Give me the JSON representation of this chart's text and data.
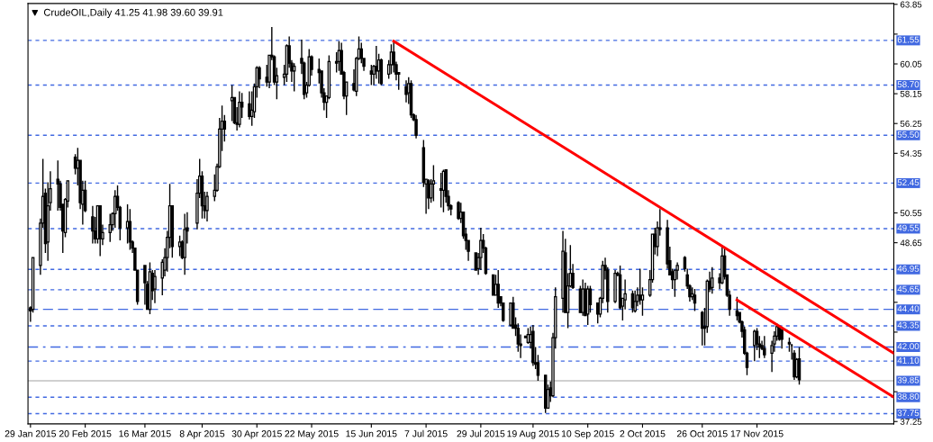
{
  "chart_data": {
    "type": "candlestick",
    "title": "CrudeOIL,Daily 41.25 41.98 39.60 39.91",
    "x": [
      "2015-01-29",
      "2015-01-30",
      "2015-02-02",
      "2015-02-03",
      "2015-02-04",
      "2015-02-05",
      "2015-02-06",
      "2015-02-09",
      "2015-02-10",
      "2015-02-11",
      "2015-02-12",
      "2015-02-13",
      "2015-02-16",
      "2015-02-17",
      "2015-02-18",
      "2015-02-19",
      "2015-02-20",
      "2015-02-23",
      "2015-02-24",
      "2015-02-25",
      "2015-02-26",
      "2015-02-27",
      "2015-03-02",
      "2015-03-03",
      "2015-03-04",
      "2015-03-05",
      "2015-03-06",
      "2015-03-09",
      "2015-03-10",
      "2015-03-11",
      "2015-03-12",
      "2015-03-13",
      "2015-03-16",
      "2015-03-17",
      "2015-03-18",
      "2015-03-19",
      "2015-03-20",
      "2015-03-23",
      "2015-03-24",
      "2015-03-25",
      "2015-03-26",
      "2015-03-27",
      "2015-03-30",
      "2015-03-31",
      "2015-04-01",
      "2015-04-02",
      "2015-04-06",
      "2015-04-07",
      "2015-04-08",
      "2015-04-09",
      "2015-04-10",
      "2015-04-13",
      "2015-04-14",
      "2015-04-15",
      "2015-04-16",
      "2015-04-17",
      "2015-04-20",
      "2015-04-21",
      "2015-04-22",
      "2015-04-23",
      "2015-04-24",
      "2015-04-27",
      "2015-04-28",
      "2015-04-29",
      "2015-04-30",
      "2015-05-01",
      "2015-05-04",
      "2015-05-05",
      "2015-05-06",
      "2015-05-07",
      "2015-05-08",
      "2015-05-11",
      "2015-05-12",
      "2015-05-13",
      "2015-05-14",
      "2015-05-15",
      "2015-05-18",
      "2015-05-19",
      "2015-05-20",
      "2015-05-21",
      "2015-05-22",
      "2015-05-25",
      "2015-05-26",
      "2015-05-27",
      "2015-05-28",
      "2015-05-29",
      "2015-06-01",
      "2015-06-02",
      "2015-06-03",
      "2015-06-04",
      "2015-06-05",
      "2015-06-08",
      "2015-06-09",
      "2015-06-10",
      "2015-06-11",
      "2015-06-12",
      "2015-06-15",
      "2015-06-16",
      "2015-06-17",
      "2015-06-18",
      "2015-06-19",
      "2015-06-22",
      "2015-06-23",
      "2015-06-24",
      "2015-06-25",
      "2015-06-26",
      "2015-06-29",
      "2015-06-30",
      "2015-07-01",
      "2015-07-02",
      "2015-07-03",
      "2015-07-06",
      "2015-07-07",
      "2015-07-08",
      "2015-07-09",
      "2015-07-10",
      "2015-07-13",
      "2015-07-14",
      "2015-07-15",
      "2015-07-16",
      "2015-07-17",
      "2015-07-20",
      "2015-07-21",
      "2015-07-22",
      "2015-07-23",
      "2015-07-24",
      "2015-07-27",
      "2015-07-28",
      "2015-07-29",
      "2015-07-30",
      "2015-07-31",
      "2015-08-03",
      "2015-08-04",
      "2015-08-05",
      "2015-08-06",
      "2015-08-07",
      "2015-08-10",
      "2015-08-11",
      "2015-08-12",
      "2015-08-13",
      "2015-08-14",
      "2015-08-16",
      "2015-08-17",
      "2015-08-18",
      "2015-08-19",
      "2015-08-20",
      "2015-08-21",
      "2015-08-24",
      "2015-08-25",
      "2015-08-26",
      "2015-08-27",
      "2015-08-28",
      "2015-08-31",
      "2015-09-01",
      "2015-09-02",
      "2015-09-03",
      "2015-09-04",
      "2015-09-07",
      "2015-09-08",
      "2015-09-09",
      "2015-09-10",
      "2015-09-11",
      "2015-09-14",
      "2015-09-15",
      "2015-09-16",
      "2015-09-17",
      "2015-09-18",
      "2015-09-21",
      "2015-09-22",
      "2015-09-23",
      "2015-09-24",
      "2015-09-25",
      "2015-09-28",
      "2015-09-29",
      "2015-09-30",
      "2015-10-01",
      "2015-10-02",
      "2015-10-05",
      "2015-10-06",
      "2015-10-07",
      "2015-10-08",
      "2015-10-09",
      "2015-10-12",
      "2015-10-13",
      "2015-10-14",
      "2015-10-15",
      "2015-10-16",
      "2015-10-19",
      "2015-10-20",
      "2015-10-21",
      "2015-10-22",
      "2015-10-23",
      "2015-10-26",
      "2015-10-27",
      "2015-10-28",
      "2015-10-29",
      "2015-10-30",
      "2015-11-02",
      "2015-11-03",
      "2015-11-04",
      "2015-11-05",
      "2015-11-06",
      "2015-11-09",
      "2015-11-10",
      "2015-11-11",
      "2015-11-12",
      "2015-11-13",
      "2015-11-16",
      "2015-11-17",
      "2015-11-18",
      "2015-11-19",
      "2015-11-20",
      "2015-11-23",
      "2015-11-24",
      "2015-11-25",
      "2015-11-26",
      "2015-11-27",
      "2015-11-30",
      "2015-12-01",
      "2015-12-02",
      "2015-12-03",
      "2015-12-04"
    ],
    "ohlc": [
      [
        44.5,
        44.6,
        43.6,
        44.3
      ],
      [
        44.4,
        47.7,
        44.2,
        47.7
      ],
      [
        47.2,
        50.2,
        46.6,
        49.9
      ],
      [
        49.9,
        54.0,
        49.6,
        51.6
      ],
      [
        51.8,
        52.1,
        48.0,
        48.6
      ],
      [
        48.7,
        52.5,
        47.5,
        51.0
      ],
      [
        51.2,
        53.2,
        50.7,
        52.1
      ],
      [
        52.7,
        53.9,
        50.7,
        52.4
      ],
      [
        52.4,
        52.6,
        50.7,
        50.9
      ],
      [
        51.1,
        51.1,
        48.0,
        49.4
      ],
      [
        49.3,
        51.5,
        49.0,
        51.4
      ],
      [
        51.3,
        52.6,
        50.9,
        52.6
      ],
      [
        54.1,
        54.3,
        53.0,
        53.4
      ],
      [
        53.4,
        54.7,
        52.3,
        53.9
      ],
      [
        53.9,
        53.9,
        50.8,
        51.2
      ],
      [
        51.1,
        52.6,
        49.8,
        52.0
      ],
      [
        52.0,
        52.6,
        50.6,
        50.7
      ],
      [
        50.3,
        51.0,
        48.6,
        49.4
      ],
      [
        49.4,
        50.3,
        48.6,
        48.9
      ],
      [
        48.9,
        51.0,
        48.6,
        51.0
      ],
      [
        51.0,
        51.0,
        47.8,
        48.9
      ],
      [
        48.9,
        49.8,
        48.5,
        49.3
      ],
      [
        49.3,
        50.5,
        48.7,
        49.8
      ],
      [
        49.8,
        50.6,
        49.4,
        50.5
      ],
      [
        50.5,
        52.0,
        49.6,
        51.6
      ],
      [
        51.6,
        52.3,
        50.7,
        50.9
      ],
      [
        50.9,
        51.0,
        48.8,
        49.6
      ],
      [
        49.6,
        51.1,
        48.6,
        50.0
      ],
      [
        50.0,
        50.8,
        48.2,
        48.7
      ],
      [
        48.7,
        48.8,
        48.0,
        48.3
      ],
      [
        48.3,
        48.3,
        46.9,
        46.9
      ],
      [
        46.9,
        46.9,
        44.7,
        44.9
      ],
      [
        47.2,
        47.2,
        44.7,
        46.1
      ],
      [
        46.0,
        46.2,
        44.4,
        44.4
      ],
      [
        44.4,
        47.4,
        44.1,
        46.8
      ],
      [
        46.7,
        46.9,
        45.0,
        45.6
      ],
      [
        45.7,
        46.9,
        44.8,
        46.5
      ],
      [
        46.4,
        47.6,
        45.3,
        47.4
      ],
      [
        46.9,
        48.3,
        46.5,
        47.7
      ],
      [
        47.7,
        49.4,
        46.8,
        49.0
      ],
      [
        49.0,
        52.4,
        48.3,
        51.0
      ],
      [
        51.0,
        51.0,
        47.7,
        48.4
      ],
      [
        48.4,
        49.1,
        47.8,
        48.7
      ],
      [
        48.7,
        48.8,
        47.6,
        47.7
      ],
      [
        47.7,
        50.5,
        46.6,
        49.5
      ],
      [
        49.6,
        50.6,
        48.6,
        49.4
      ],
      [
        49.9,
        52.7,
        49.5,
        51.8
      ],
      [
        51.8,
        54.0,
        51.5,
        52.9
      ],
      [
        52.9,
        53.2,
        50.2,
        51.0
      ],
      [
        51.0,
        51.9,
        50.2,
        50.7
      ],
      [
        50.7,
        51.9,
        50.0,
        51.6
      ],
      [
        51.6,
        53.0,
        51.3,
        52.0
      ],
      [
        52.0,
        53.7,
        51.9,
        53.5
      ],
      [
        53.5,
        56.6,
        53.4,
        55.9
      ],
      [
        55.9,
        57.4,
        54.5,
        56.4
      ],
      [
        56.4,
        56.8,
        55.1,
        55.9
      ],
      [
        57.7,
        58.7,
        56.4,
        57.9
      ],
      [
        57.9,
        57.9,
        56.2,
        56.3
      ],
      [
        56.3,
        57.3,
        55.8,
        56.2
      ],
      [
        56.2,
        58.3,
        56.0,
        57.6
      ],
      [
        57.6,
        58.2,
        56.6,
        57.3
      ],
      [
        57.5,
        58.3,
        56.5,
        56.7
      ],
      [
        56.7,
        58.3,
        56.1,
        57.1
      ],
      [
        57.0,
        58.8,
        56.6,
        58.6
      ],
      [
        58.6,
        59.9,
        57.9,
        59.8
      ],
      [
        59.8,
        59.9,
        58.5,
        59.1
      ],
      [
        59.2,
        60.0,
        58.6,
        58.9
      ],
      [
        58.9,
        60.6,
        58.5,
        60.6
      ],
      [
        60.6,
        62.4,
        60.3,
        60.5
      ],
      [
        60.5,
        60.6,
        58.7,
        58.9
      ],
      [
        58.9,
        59.8,
        57.8,
        59.3
      ],
      [
        59.2,
        60.0,
        58.7,
        59.4
      ],
      [
        59.4,
        61.3,
        58.9,
        61.2
      ],
      [
        61.2,
        61.8,
        59.8,
        60.1
      ],
      [
        60.1,
        60.3,
        58.9,
        59.6
      ],
      [
        59.6,
        60.1,
        58.3,
        59.9
      ],
      [
        60.4,
        61.6,
        59.4,
        60.1
      ],
      [
        60.1,
        60.2,
        57.8,
        58.1
      ],
      [
        58.2,
        58.9,
        57.9,
        58.7
      ],
      [
        58.7,
        61.0,
        58.6,
        60.5
      ],
      [
        60.5,
        60.6,
        59.3,
        59.7
      ],
      [
        59.7,
        60.4,
        58.8,
        59.5
      ],
      [
        59.6,
        59.6,
        57.9,
        58.2
      ],
      [
        58.2,
        58.5,
        57.1,
        57.6
      ],
      [
        57.6,
        58.0,
        56.6,
        58.0
      ],
      [
        57.9,
        60.6,
        57.8,
        60.2
      ],
      [
        60.2,
        60.8,
        59.5,
        60.1
      ],
      [
        60.2,
        61.5,
        59.6,
        60.9
      ],
      [
        60.9,
        61.4,
        59.4,
        59.4
      ],
      [
        59.5,
        59.6,
        57.8,
        58.0
      ],
      [
        58.0,
        58.9,
        56.8,
        58.9
      ],
      [
        58.8,
        59.7,
        58.3,
        58.4
      ],
      [
        58.3,
        60.5,
        58.0,
        60.4
      ],
      [
        60.4,
        61.8,
        60.3,
        61.0
      ],
      [
        61.0,
        61.4,
        60.1,
        60.4
      ],
      [
        60.4,
        60.4,
        59.6,
        59.9
      ],
      [
        59.6,
        60.0,
        58.7,
        59.4
      ],
      [
        59.4,
        60.0,
        58.7,
        59.9
      ],
      [
        59.9,
        61.2,
        59.1,
        59.6
      ],
      [
        59.6,
        60.7,
        58.8,
        60.3
      ],
      [
        60.3,
        60.4,
        58.7,
        58.8
      ],
      [
        59.4,
        60.3,
        59.1,
        60.0
      ],
      [
        60.0,
        61.3,
        59.4,
        60.8
      ],
      [
        60.8,
        61.5,
        59.5,
        60.0
      ],
      [
        60.0,
        60.2,
        59.0,
        59.4
      ],
      [
        59.5,
        59.5,
        58.4,
        59.4
      ],
      [
        58.6,
        59.0,
        57.6,
        58.1
      ],
      [
        58.2,
        59.2,
        57.5,
        58.8
      ],
      [
        58.8,
        59.0,
        56.6,
        56.8
      ],
      [
        56.8,
        56.9,
        56.4,
        56.5
      ],
      [
        56.5,
        56.8,
        55.3,
        55.5
      ],
      [
        54.7,
        55.2,
        52.2,
        52.5
      ],
      [
        52.4,
        52.7,
        50.5,
        52.7
      ],
      [
        52.6,
        52.7,
        50.8,
        51.5
      ],
      [
        51.5,
        52.7,
        51.2,
        52.4
      ],
      [
        52.4,
        53.6,
        51.3,
        52.6
      ],
      [
        52.1,
        53.1,
        50.9,
        52.0
      ],
      [
        52.0,
        53.3,
        50.6,
        53.2
      ],
      [
        53.3,
        53.3,
        51.2,
        51.6
      ],
      [
        51.6,
        52.0,
        50.7,
        51.0
      ],
      [
        51.0,
        51.1,
        50.4,
        50.8
      ],
      [
        51.2,
        51.3,
        50.1,
        50.2
      ],
      [
        50.2,
        51.2,
        49.9,
        50.6
      ],
      [
        50.6,
        50.6,
        48.9,
        49.1
      ],
      [
        49.2,
        49.6,
        48.2,
        48.8
      ],
      [
        48.8,
        48.8,
        47.5,
        48.1
      ],
      [
        48.0,
        48.0,
        46.9,
        46.9
      ],
      [
        47.0,
        48.0,
        46.6,
        47.7
      ],
      [
        47.7,
        49.6,
        46.9,
        48.8
      ],
      [
        48.8,
        49.2,
        48.0,
        48.3
      ],
      [
        48.3,
        48.4,
        46.6,
        46.7
      ],
      [
        46.6,
        46.6,
        45.3,
        45.3
      ],
      [
        45.3,
        46.6,
        45.3,
        46.0
      ],
      [
        46.0,
        46.9,
        44.5,
        44.8
      ],
      [
        45.2,
        45.2,
        44.6,
        44.8
      ],
      [
        44.8,
        44.8,
        43.6,
        43.7
      ],
      [
        43.4,
        44.8,
        43.3,
        44.8
      ],
      [
        44.8,
        45.2,
        43.2,
        43.2
      ],
      [
        43.4,
        43.9,
        42.7,
        43.2
      ],
      [
        43.2,
        43.5,
        41.7,
        42.2
      ],
      [
        42.2,
        42.8,
        41.3,
        42.1
      ],
      [
        42.7,
        42.7,
        42.6,
        42.6
      ],
      [
        42.3,
        43.2,
        42.2,
        42.8
      ],
      [
        42.3,
        43.3,
        41.9,
        42.8
      ],
      [
        43.0,
        43.4,
        40.8,
        41.0
      ],
      [
        41.0,
        42.0,
        40.6,
        40.9
      ],
      [
        41.0,
        41.5,
        39.85,
        40.2
      ],
      [
        40.2,
        40.2,
        37.8,
        38.1
      ],
      [
        38.1,
        39.6,
        38.1,
        39.3
      ],
      [
        39.4,
        39.8,
        38.5,
        38.9
      ],
      [
        38.9,
        42.9,
        38.8,
        42.6
      ],
      [
        42.6,
        45.8,
        41.9,
        45.2
      ],
      [
        45.1,
        49.4,
        44.2,
        48.1
      ],
      [
        48.0,
        48.9,
        44.2,
        44.2
      ],
      [
        44.2,
        46.7,
        43.2,
        45.9
      ],
      [
        45.9,
        48.5,
        45.8,
        46.7
      ],
      [
        46.7,
        47.3,
        45.7,
        45.8
      ],
      [
        45.7,
        45.9,
        44.2,
        44.2
      ],
      [
        44.2,
        46.3,
        44.0,
        45.7
      ],
      [
        45.7,
        46.1,
        44.0,
        44.0
      ],
      [
        44.1,
        45.9,
        43.4,
        45.7
      ],
      [
        45.7,
        45.9,
        44.2,
        44.7
      ],
      [
        44.8,
        44.8,
        43.5,
        44.1
      ],
      [
        44.1,
        45.2,
        43.9,
        45.1
      ],
      [
        45.1,
        47.5,
        44.8,
        47.2
      ],
      [
        47.2,
        47.7,
        46.3,
        46.9
      ],
      [
        46.9,
        47.1,
        44.2,
        44.9
      ],
      [
        44.9,
        46.9,
        44.8,
        46.7
      ],
      [
        46.7,
        46.8,
        46.5,
        46.6
      ],
      [
        46.6,
        47.2,
        44.4,
        44.5
      ],
      [
        44.6,
        45.1,
        43.7,
        45.1
      ],
      [
        45.0,
        46.3,
        44.4,
        45.4
      ],
      [
        45.4,
        45.6,
        44.2,
        44.5
      ],
      [
        44.3,
        45.6,
        44.2,
        44.9
      ],
      [
        44.9,
        45.8,
        44.6,
        45.3
      ],
      [
        45.3,
        47.0,
        44.7,
        45.0
      ],
      [
        45.0,
        45.8,
        44.0,
        45.3
      ],
      [
        45.3,
        46.9,
        45.2,
        46.3
      ],
      [
        46.3,
        49.2,
        46.1,
        49.2
      ],
      [
        49.2,
        49.6,
        47.9,
        48.4
      ],
      [
        48.4,
        50.0,
        47.8,
        49.6
      ],
      [
        49.6,
        50.8,
        49.1,
        49.5
      ],
      [
        49.6,
        50.1,
        47.0,
        47.3
      ],
      [
        47.5,
        48.4,
        46.6,
        46.6
      ],
      [
        46.8,
        47.0,
        45.7,
        46.3
      ],
      [
        46.3,
        46.9,
        45.2,
        46.9
      ],
      [
        46.9,
        47.4,
        46.3,
        47.2
      ],
      [
        47.7,
        47.8,
        46.8,
        47.0
      ],
      [
        46.6,
        47.0,
        45.7,
        45.9
      ],
      [
        45.9,
        46.0,
        44.9,
        45.2
      ],
      [
        45.2,
        45.8,
        45.0,
        45.4
      ],
      [
        45.3,
        45.7,
        44.3,
        44.8
      ],
      [
        44.2,
        44.3,
        42.1,
        43.2
      ],
      [
        43.3,
        44.5,
        42.1,
        43.2
      ],
      [
        43.3,
        46.3,
        42.9,
        46.2
      ],
      [
        46.2,
        46.8,
        45.5,
        45.7
      ],
      [
        45.8,
        47.1,
        45.4,
        46.4
      ],
      [
        46.4,
        46.7,
        45.7,
        46.1
      ],
      [
        46.1,
        48.4,
        46.0,
        47.8
      ],
      [
        47.8,
        48.4,
        46.3,
        46.5
      ],
      [
        46.6,
        46.6,
        45.2,
        45.3
      ],
      [
        45.3,
        45.6,
        44.0,
        44.4
      ],
      [
        44.3,
        45.2,
        43.7,
        44.0
      ],
      [
        44.2,
        44.2,
        43.5,
        43.6
      ],
      [
        43.6,
        43.7,
        42.6,
        43.0
      ],
      [
        43.1,
        43.3,
        41.5,
        41.6
      ],
      [
        41.6,
        41.7,
        40.2,
        40.7
      ],
      [
        42.1,
        43.1,
        41.1,
        43.0
      ],
      [
        43.0,
        43.2,
        41.8,
        42.2
      ],
      [
        42.2,
        42.7,
        41.3,
        42.0
      ],
      [
        42.1,
        42.4,
        41.8,
        41.9
      ],
      [
        41.9,
        42.7,
        41.3,
        41.5
      ],
      [
        41.6,
        42.4,
        40.4,
        42.1
      ],
      [
        42.2,
        43.0,
        41.7,
        42.7
      ],
      [
        42.7,
        43.5,
        42.4,
        43.3
      ],
      [
        43.3,
        43.4,
        42.4,
        42.5
      ],
      [
        43.1,
        43.2,
        41.9,
        42.5
      ],
      [
        42.3,
        42.6,
        41.7,
        42.2
      ],
      [
        42.1,
        42.2,
        41.2,
        42.1
      ],
      [
        41.6,
        41.8,
        39.9,
        40.1
      ],
      [
        40.1,
        41.3,
        40.0,
        41.2
      ],
      [
        41.25,
        41.98,
        39.6,
        39.91
      ]
    ],
    "series": [
      {
        "type": "line",
        "x": [
          "2015-06-24",
          "2016-01-11"
        ],
        "values": [
          61.5,
          41.6
        ],
        "color": "#ff0000"
      },
      {
        "type": "line",
        "x": [
          "2015-11-09",
          "2016-01-11"
        ],
        "values": [
          45.0,
          38.8
        ],
        "color": "#ff0000"
      }
    ],
    "xlim": [
      "2015-01-28",
      "2016-01-11"
    ],
    "ylim": [
      37.1,
      63.9
    ],
    "xticks": [
      {
        "value": "2015-01-29",
        "label": "29 Jan 2015"
      },
      {
        "value": "2015-02-20",
        "label": "20 Feb 2015"
      },
      {
        "value": "2015-03-16",
        "label": "16 Mar 2015"
      },
      {
        "value": "2015-04-08",
        "label": "8 Apr 2015"
      },
      {
        "value": "2015-04-30",
        "label": "30 Apr 2015"
      },
      {
        "value": "2015-05-22",
        "label": "22 May 2015"
      },
      {
        "value": "2015-06-15",
        "label": "15 Jun 2015"
      },
      {
        "value": "2015-07-07",
        "label": "7 Jul 2015"
      },
      {
        "value": "2015-07-29",
        "label": "29 Jul 2015"
      },
      {
        "value": "2015-08-19",
        "label": "19 Aug 2015"
      },
      {
        "value": "2015-09-10",
        "label": "10 Sep 2015"
      },
      {
        "value": "2015-10-02",
        "label": "2 Oct 2015"
      },
      {
        "value": "2015-10-26",
        "label": "26 Oct 2015"
      },
      {
        "value": "2015-11-17",
        "label": "17 Nov 2015"
      }
    ],
    "yticks": [
      {
        "value": 63.85,
        "label": "63.85"
      },
      {
        "value": 61.95,
        "label": null
      },
      {
        "value": 60.05,
        "label": "60.05"
      },
      {
        "value": 58.15,
        "label": "58.15"
      },
      {
        "value": 56.25,
        "label": "56.25"
      },
      {
        "value": 54.35,
        "label": "54.35"
      },
      {
        "value": 50.55,
        "label": "50.55"
      },
      {
        "value": 48.65,
        "label": "48.65"
      },
      {
        "value": 44.85,
        "label": null
      },
      {
        "value": 42.95,
        "label": null
      },
      {
        "value": 39.15,
        "label": null
      },
      {
        "value": 37.25,
        "label": "37.25"
      }
    ],
    "ref_lines": [
      {
        "axis": "y",
        "value": 61.55,
        "label": "61.55",
        "color": "#4169e1",
        "line_style": "dotted"
      },
      {
        "axis": "y",
        "value": 58.7,
        "label": "58.70",
        "color": "#4169e1",
        "line_style": "dotted"
      },
      {
        "axis": "y",
        "value": 55.5,
        "label": "55.50",
        "color": "#4169e1",
        "line_style": "dotted"
      },
      {
        "axis": "y",
        "value": 52.45,
        "label": "52.45",
        "color": "#4169e1",
        "line_style": "dotted"
      },
      {
        "axis": "y",
        "value": 49.55,
        "label": "49.55",
        "color": "#4169e1",
        "line_style": "dotted"
      },
      {
        "axis": "y",
        "value": 46.95,
        "label": "46.95",
        "color": "#4169e1",
        "line_style": "dotted"
      },
      {
        "axis": "y",
        "value": 45.65,
        "label": "45.65",
        "color": "#4169e1",
        "line_style": "dotted"
      },
      {
        "axis": "y",
        "value": 44.4,
        "label": "44.40",
        "color": "#4169e1",
        "line_style": "dashed"
      },
      {
        "axis": "y",
        "value": 43.35,
        "label": "43.35",
        "color": "#4169e1",
        "line_style": "dotted"
      },
      {
        "axis": "y",
        "value": 42.0,
        "label": "42.00",
        "color": "#4169e1",
        "line_style": "dashdot"
      },
      {
        "axis": "y",
        "value": 41.1,
        "label": "41.10",
        "color": "#4169e1",
        "line_style": "dotted"
      },
      {
        "axis": "y",
        "value": 39.85,
        "label": "39.85",
        "color": "#c0c0c0",
        "line_style": "solid"
      },
      {
        "axis": "y",
        "value": 38.8,
        "label": "38.80",
        "color": "#4169e1",
        "line_style": "dotted"
      },
      {
        "axis": "y",
        "value": 37.75,
        "label": "37.75",
        "color": "#4169e1",
        "line_style": "dotted"
      }
    ]
  }
}
